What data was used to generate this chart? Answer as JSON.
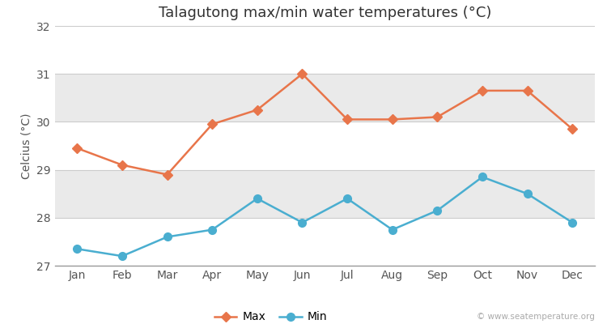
{
  "title": "Talagutong max/min water temperatures (°C)",
  "ylabel": "Celcius (°C)",
  "months": [
    "Jan",
    "Feb",
    "Mar",
    "Apr",
    "May",
    "Jun",
    "Jul",
    "Aug",
    "Sep",
    "Oct",
    "Nov",
    "Dec"
  ],
  "max_temps": [
    29.45,
    29.1,
    28.9,
    29.95,
    30.25,
    31.0,
    30.05,
    30.05,
    30.1,
    30.65,
    30.65,
    29.85
  ],
  "min_temps": [
    27.35,
    27.2,
    27.6,
    27.75,
    28.4,
    27.9,
    28.4,
    27.75,
    28.15,
    28.85,
    28.5,
    27.9
  ],
  "max_color": "#e8754a",
  "min_color": "#4aaed0",
  "ylim": [
    27,
    32
  ],
  "yticks": [
    27,
    28,
    29,
    30,
    31,
    32
  ],
  "band_colors": [
    "#ffffff",
    "#eaeaea",
    "#ffffff",
    "#eaeaea",
    "#ffffff"
  ],
  "fig_bg_color": "#ffffff",
  "plot_bg_color": "#ffffff",
  "grid_color": "#cccccc",
  "watermark": "© www.seatemperature.org",
  "legend_max": "Max",
  "legend_min": "Min",
  "title_fontsize": 13,
  "label_fontsize": 10,
  "tick_fontsize": 10
}
